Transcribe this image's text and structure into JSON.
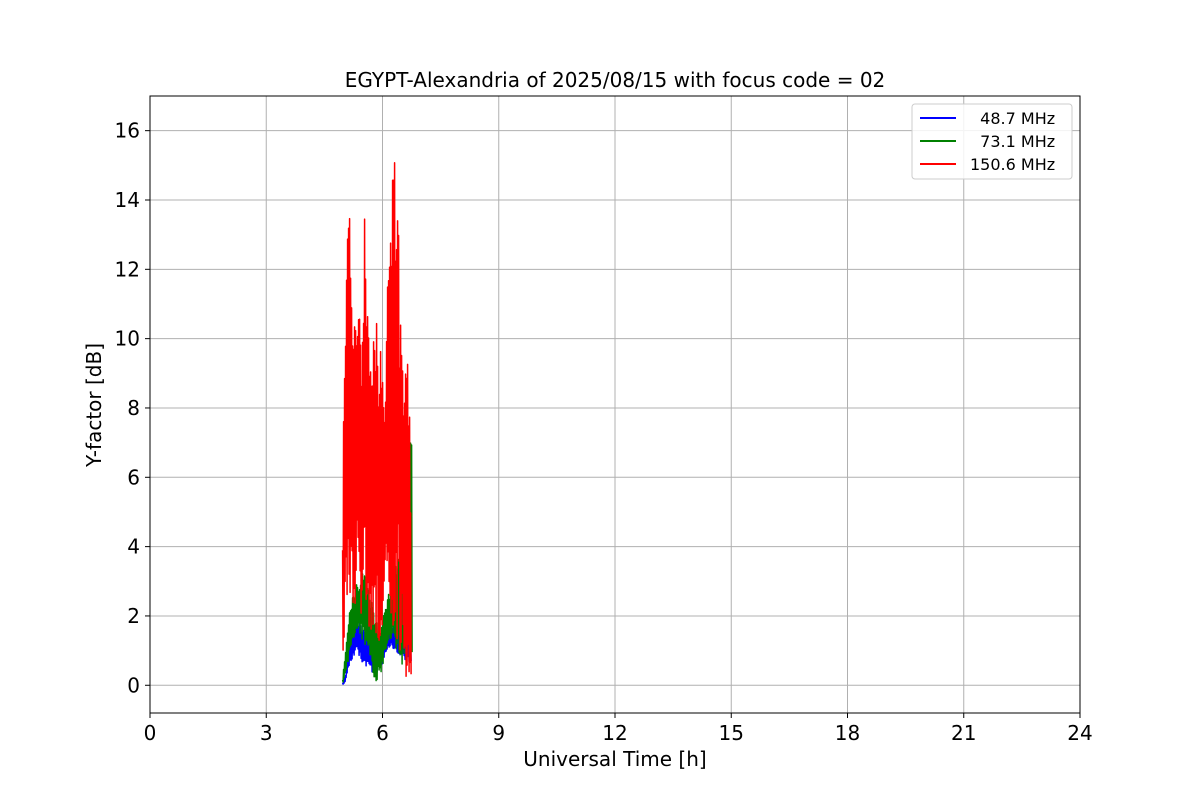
{
  "chart_data": {
    "type": "line",
    "title": "EGYPT-Alexandria of 2025/08/15 with focus code = 02",
    "xlabel": "Universal Time [h]",
    "ylabel": "Y-factor [dB]",
    "xlim": [
      0,
      24
    ],
    "ylim": [
      -0.8,
      17
    ],
    "x_ticks": [
      0,
      3,
      6,
      9,
      12,
      15,
      18,
      21,
      24
    ],
    "y_ticks": [
      0,
      2,
      4,
      6,
      8,
      10,
      12,
      14,
      16
    ],
    "grid": true,
    "legend_position": "top-right",
    "series": [
      {
        "name": "  48.7 MHz",
        "color": "#0000ff",
        "x_range": [
          4.97,
          6.75
        ],
        "envelope": [
          [
            4.97,
            0.0,
            0.1
          ],
          [
            5.05,
            0.1,
            0.3
          ],
          [
            5.12,
            0.5,
            1.2
          ],
          [
            5.2,
            0.7,
            1.6
          ],
          [
            5.3,
            0.9,
            2.0
          ],
          [
            5.4,
            0.8,
            1.9
          ],
          [
            5.5,
            0.6,
            1.7
          ],
          [
            5.6,
            0.5,
            1.5
          ],
          [
            5.7,
            0.4,
            1.3
          ],
          [
            5.8,
            0.3,
            1.1
          ],
          [
            5.9,
            0.4,
            1.2
          ],
          [
            6.0,
            0.6,
            1.3
          ],
          [
            6.1,
            0.9,
            1.6
          ],
          [
            6.2,
            1.1,
            1.8
          ],
          [
            6.3,
            1.0,
            1.7
          ],
          [
            6.4,
            0.9,
            1.6
          ],
          [
            6.5,
            0.8,
            1.5
          ],
          [
            6.6,
            0.7,
            1.4
          ],
          [
            6.75,
            0.6,
            1.3
          ]
        ]
      },
      {
        "name": "  73.1 MHz",
        "color": "#008000",
        "x_range": [
          4.97,
          6.77
        ],
        "envelope": [
          [
            4.97,
            0.0,
            0.2
          ],
          [
            5.05,
            0.3,
            1.0
          ],
          [
            5.15,
            0.8,
            2.2
          ],
          [
            5.25,
            1.2,
            2.8
          ],
          [
            5.35,
            1.5,
            3.0
          ],
          [
            5.45,
            1.4,
            3.2
          ],
          [
            5.55,
            1.1,
            3.3
          ],
          [
            5.65,
            0.8,
            2.8
          ],
          [
            5.75,
            0.2,
            2.3
          ],
          [
            5.85,
            0.1,
            1.8
          ],
          [
            5.95,
            0.3,
            1.6
          ],
          [
            6.05,
            0.8,
            2.2
          ],
          [
            6.15,
            1.2,
            2.6
          ],
          [
            6.25,
            1.4,
            3.0
          ],
          [
            6.35,
            1.0,
            3.5
          ],
          [
            6.45,
            0.6,
            4.5
          ],
          [
            6.55,
            0.3,
            5.5
          ],
          [
            6.65,
            0.3,
            6.5
          ],
          [
            6.72,
            0.6,
            7.3
          ],
          [
            6.77,
            1.0,
            7.4
          ]
        ]
      },
      {
        "name": "150.6 MHz",
        "color": "#ff0000",
        "x_range": [
          4.97,
          6.75
        ],
        "envelope": [
          [
            4.97,
            0.1,
            4.0
          ],
          [
            5.0,
            0.5,
            9.2
          ],
          [
            5.05,
            1.0,
            11.3
          ],
          [
            5.1,
            1.5,
            13.0
          ],
          [
            5.15,
            2.0,
            14.7
          ],
          [
            5.2,
            2.0,
            11.2
          ],
          [
            5.25,
            1.8,
            11.4
          ],
          [
            5.3,
            2.2,
            11.3
          ],
          [
            5.35,
            2.5,
            11.9
          ],
          [
            5.4,
            2.5,
            11.0
          ],
          [
            5.45,
            2.0,
            10.6
          ],
          [
            5.5,
            1.8,
            10.3
          ],
          [
            5.55,
            2.2,
            15.2
          ],
          [
            5.6,
            2.0,
            10.9
          ],
          [
            5.65,
            1.5,
            11.3
          ],
          [
            5.7,
            1.2,
            10.4
          ],
          [
            5.75,
            1.0,
            10.8
          ],
          [
            5.8,
            0.9,
            10.3
          ],
          [
            5.85,
            0.8,
            10.7
          ],
          [
            5.9,
            1.0,
            9.5
          ],
          [
            5.95,
            1.5,
            10.0
          ],
          [
            6.0,
            1.8,
            9.4
          ],
          [
            6.05,
            2.2,
            8.2
          ],
          [
            6.1,
            2.5,
            9.8
          ],
          [
            6.15,
            2.2,
            12.5
          ],
          [
            6.2,
            2.0,
            14.5
          ],
          [
            6.25,
            1.8,
            15.8
          ],
          [
            6.3,
            1.6,
            15.0
          ],
          [
            6.35,
            1.3,
            15.6
          ],
          [
            6.4,
            1.0,
            16.1
          ],
          [
            6.45,
            0.8,
            10.8
          ],
          [
            6.5,
            0.4,
            10.2
          ],
          [
            6.55,
            0.2,
            9.2
          ],
          [
            6.6,
            0.1,
            9.0
          ],
          [
            6.65,
            0.3,
            9.3
          ],
          [
            6.7,
            0.2,
            7.9
          ],
          [
            6.75,
            0.3,
            5.0
          ]
        ]
      }
    ]
  }
}
